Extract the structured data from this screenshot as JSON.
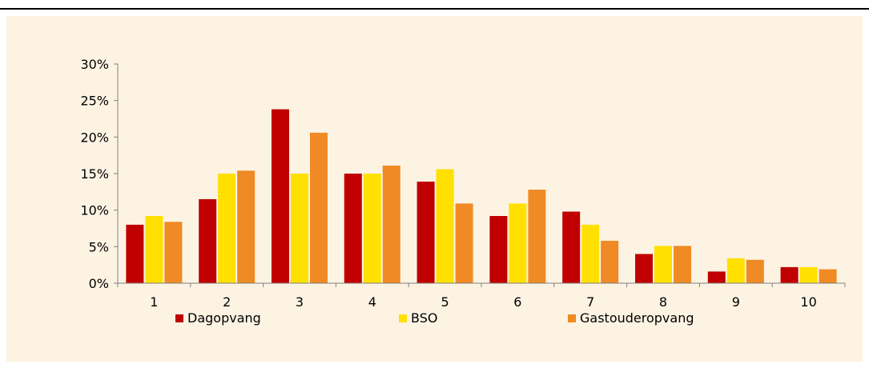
{
  "colors": {
    "panel_background": "#FDF3E3",
    "axis": "#808080",
    "rule": "#000000"
  },
  "chart_data": {
    "type": "bar",
    "categories": [
      "1",
      "2",
      "3",
      "4",
      "5",
      "6",
      "7",
      "8",
      "9",
      "10"
    ],
    "series": [
      {
        "name": "Dagopvang",
        "color": "#C00000",
        "values": [
          8.0,
          11.5,
          23.8,
          15.0,
          13.9,
          9.2,
          9.8,
          4.0,
          1.6,
          2.2
        ]
      },
      {
        "name": "BSO",
        "color": "#FFE000",
        "values": [
          9.2,
          15.0,
          15.0,
          15.0,
          15.6,
          10.9,
          8.0,
          5.1,
          3.4,
          2.2
        ]
      },
      {
        "name": "Gastouderopvang",
        "color": "#F08A24",
        "values": [
          8.4,
          15.4,
          20.6,
          16.1,
          10.9,
          12.8,
          5.8,
          5.1,
          3.2,
          1.9
        ]
      }
    ],
    "yticks": [
      "0%",
      "5%",
      "10%",
      "15%",
      "20%",
      "25%",
      "30%"
    ],
    "ylim": [
      0,
      30
    ],
    "unit": "%",
    "legend_position": "bottom",
    "grid": false
  }
}
